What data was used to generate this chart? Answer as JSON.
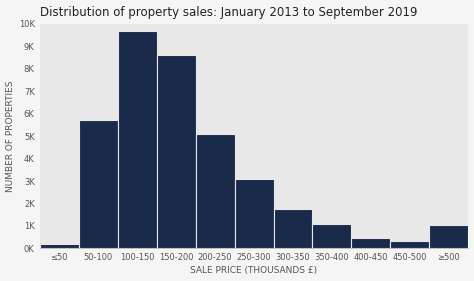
{
  "title": "Distribution of property sales: January 2013 to September 2019",
  "xlabel": "SALE PRICE (THOUSANDS £)",
  "ylabel": "NUMBER OF PROPERTIES",
  "categories": [
    "≤50",
    "50-100",
    "100-150",
    "150-200",
    "200-250",
    "250-300",
    "300-350",
    "350-400",
    "400-450",
    "450-500",
    "≥500"
  ],
  "values": [
    200,
    5700,
    9700,
    8600,
    5100,
    3100,
    1750,
    1100,
    450,
    350,
    1050
  ],
  "bar_color": "#1a2a4a",
  "plot_bg_color": "#e8e8e8",
  "fig_bg_color": "#f5f5f5",
  "ylim": [
    0,
    10000
  ],
  "yticks": [
    0,
    1000,
    2000,
    3000,
    4000,
    5000,
    6000,
    7000,
    8000,
    9000,
    10000
  ],
  "ytick_labels": [
    "0K",
    "1K",
    "2K",
    "3K",
    "4K",
    "5K",
    "6K",
    "7K",
    "8K",
    "9K",
    "10K"
  ],
  "title_fontsize": 8.5,
  "axis_label_fontsize": 6.5,
  "tick_fontsize": 6
}
